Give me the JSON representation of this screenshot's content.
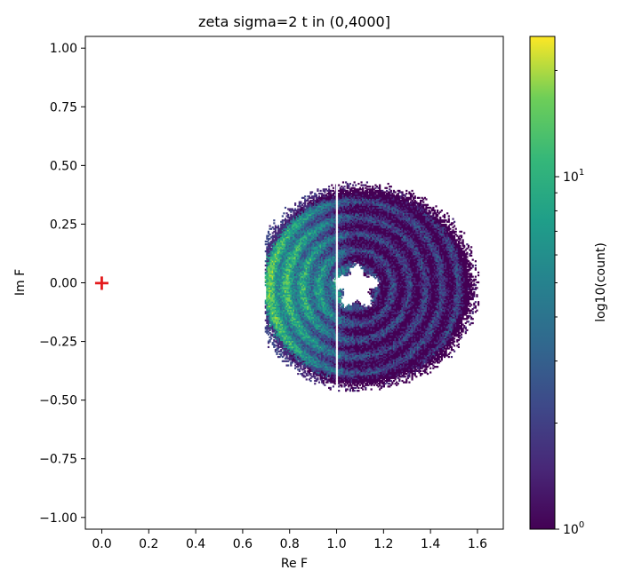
{
  "chart_data": {
    "type": "heatmap",
    "title": "zeta  sigma=2  t in (0,4000]",
    "xlabel": "Re F",
    "ylabel": "Im F",
    "xlim": [
      -0.07,
      1.71
    ],
    "ylim": [
      -1.05,
      1.05
    ],
    "x_ticks": [
      0.0,
      0.2,
      0.4,
      0.6,
      0.8,
      1.0,
      1.2,
      1.4,
      1.6
    ],
    "x_tick_labels": [
      "0.0",
      "0.2",
      "0.4",
      "0.6",
      "0.8",
      "1.0",
      "1.2",
      "1.4",
      "1.6"
    ],
    "y_ticks": [
      1.0,
      0.75,
      0.5,
      0.25,
      0.0,
      -0.25,
      -0.5,
      -0.75,
      -1.0
    ],
    "y_tick_labels": [
      "1.00",
      "0.75",
      "0.50",
      "0.25",
      "0.00",
      "−0.25",
      "−0.50",
      "−0.75",
      "−1.00"
    ],
    "grid": false,
    "annulus": {
      "center": [
        1.08,
        -0.02
      ],
      "inner_radius": 0.08,
      "outer_radius": 0.44,
      "min_re": 0.69
    },
    "gap_line_x": 1.0,
    "marker": {
      "x": 0.0,
      "y": 0.0,
      "symbol": "+",
      "color": "#e41a1c"
    },
    "colorbar": {
      "label": "log10(count)",
      "scale": "log",
      "range": [
        1,
        25
      ],
      "tick_labels": [
        {
          "value": 1,
          "base": "10",
          "exp": "0"
        },
        {
          "value": 10,
          "base": "10",
          "exp": "1"
        }
      ],
      "colormap": "viridis"
    }
  }
}
